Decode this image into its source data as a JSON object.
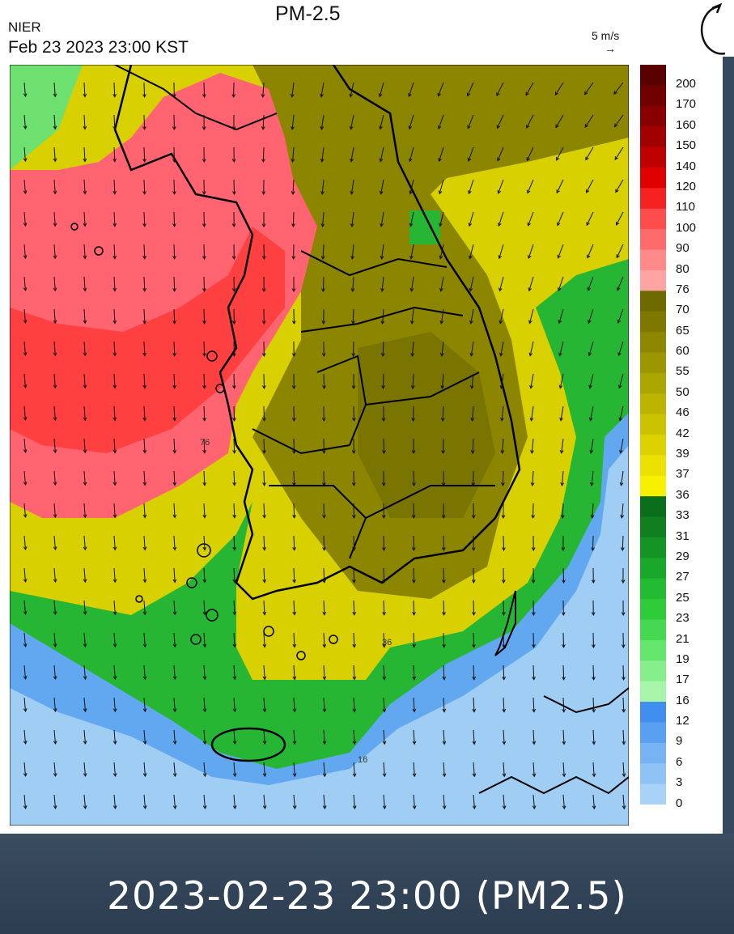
{
  "header": {
    "agency": "NIER",
    "timestamp": "Feb 23 2023 23:00 KST",
    "title": "PM-2.5",
    "wind_reference": "5 m/s",
    "wind_reference_arrow": "→"
  },
  "caption": "2023-02-23 23:00  (PM2.5)",
  "refresh_icon": "refresh-icon",
  "legend": {
    "levels": [
      "200",
      "170",
      "160",
      "150",
      "140",
      "120",
      "110",
      "100",
      "90",
      "80",
      "76",
      "70",
      "65",
      "60",
      "55",
      "50",
      "46",
      "42",
      "39",
      "37",
      "36",
      "33",
      "31",
      "29",
      "27",
      "25",
      "23",
      "21",
      "19",
      "17",
      "16",
      "12",
      "9",
      "6",
      "3",
      "0"
    ],
    "colors": [
      "#5a0000",
      "#700000",
      "#880000",
      "#a20000",
      "#bf0000",
      "#e00000",
      "#f52020",
      "#ff4d4d",
      "#ff6b6b",
      "#ff8a8a",
      "#ffa3a3",
      "#6e6a00",
      "#7e7800",
      "#8e8800",
      "#9c9600",
      "#aca600",
      "#bcb400",
      "#ccc300",
      "#dcd200",
      "#ece100",
      "#f7f000",
      "#0b6e1a",
      "#0f7f1f",
      "#149424",
      "#1aa82a",
      "#22bb31",
      "#2fcc3a",
      "#45d850",
      "#64e56c",
      "#86ef8c",
      "#a6f5a9",
      "#3f8ef0",
      "#5aa0f2",
      "#76b2f4",
      "#8fc3f6",
      "#a8d2f8"
    ]
  },
  "map": {
    "colors": {
      "high": "#ff6470",
      "very_high": "#ff4040",
      "moderate": "#8b8500",
      "moderate_dark": "#7a7400",
      "yellow": "#d8d000",
      "green": "#26b633",
      "green_light": "#6ee06f",
      "blue": "#62a8f0",
      "blue_light": "#9fcdf3",
      "outline": "#000000",
      "arrow": "#111111",
      "district": "#dcdcdc"
    },
    "contour_labels": [
      "76",
      "36",
      "16"
    ]
  }
}
